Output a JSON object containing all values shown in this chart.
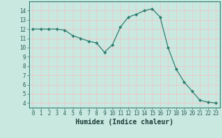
{
  "x": [
    0,
    1,
    2,
    3,
    4,
    5,
    6,
    7,
    8,
    9,
    10,
    11,
    12,
    13,
    14,
    15,
    16,
    17,
    18,
    19,
    20,
    21,
    22,
    23
  ],
  "y": [
    12.0,
    12.0,
    12.0,
    12.0,
    11.9,
    11.3,
    11.0,
    10.7,
    10.5,
    9.5,
    10.3,
    12.2,
    13.3,
    13.6,
    14.0,
    14.2,
    13.3,
    10.0,
    7.7,
    6.3,
    5.3,
    4.3,
    4.1,
    4.0
  ],
  "xlabel": "Humidex (Indice chaleur)",
  "ylim": [
    3.5,
    15
  ],
  "xlim": [
    -0.5,
    23.5
  ],
  "yticks": [
    4,
    5,
    6,
    7,
    8,
    9,
    10,
    11,
    12,
    13,
    14
  ],
  "xticks": [
    0,
    1,
    2,
    3,
    4,
    5,
    6,
    7,
    8,
    9,
    10,
    11,
    12,
    13,
    14,
    15,
    16,
    17,
    18,
    19,
    20,
    21,
    22,
    23
  ],
  "line_color": "#2e7d6e",
  "marker_color": "#2e7d6e",
  "bg_color": "#c8e8e0",
  "grid_major_color": "#f0c8c8",
  "grid_minor_color": "#c8e0dc",
  "tick_label_fontsize": 5.5,
  "xlabel_fontsize": 7.0
}
